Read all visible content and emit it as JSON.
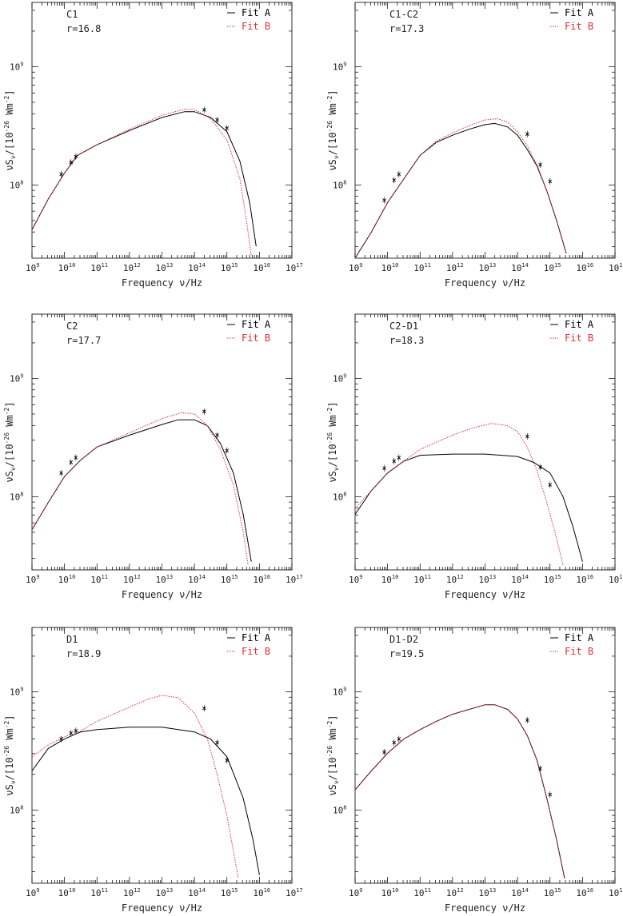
{
  "chart_data": [
    {
      "type": "line",
      "label": "C1",
      "r_label": "r=16.8",
      "xlabel": "Frequency ν/Hz",
      "ylabel": "νS_ν/[10^-26 Wm^-2]",
      "xscale": "log",
      "yscale": "log",
      "xlim": [
        1000000000.0,
        1e+17
      ],
      "ylim": [
        24000000.0,
        3500000000.0
      ],
      "legend": {
        "position": "top-right",
        "entries": [
          "Fit A",
          "Fit B"
        ]
      },
      "series": [
        {
          "name": "Fit A",
          "color": "#000000",
          "style": "solid",
          "points": [
            [
              9.0,
              7.62
            ],
            [
              9.5,
              7.88
            ],
            [
              10.0,
              8.1
            ],
            [
              10.4,
              8.25
            ],
            [
              11.0,
              8.34
            ],
            [
              12.0,
              8.46
            ],
            [
              13.0,
              8.57
            ],
            [
              13.7,
              8.62
            ],
            [
              14.0,
              8.62
            ],
            [
              14.5,
              8.57
            ],
            [
              15.0,
              8.45
            ],
            [
              15.4,
              8.2
            ],
            [
              15.7,
              7.85
            ],
            [
              15.9,
              7.48
            ]
          ]
        },
        {
          "name": "Fit B",
          "color": "#e03030",
          "style": "dotted",
          "points": [
            [
              9.0,
              7.62
            ],
            [
              9.5,
              7.88
            ],
            [
              10.0,
              8.1
            ],
            [
              10.4,
              8.25
            ],
            [
              11.0,
              8.34
            ],
            [
              12.0,
              8.47
            ],
            [
              13.0,
              8.59
            ],
            [
              13.7,
              8.64
            ],
            [
              14.0,
              8.64
            ],
            [
              14.5,
              8.56
            ],
            [
              15.0,
              8.38
            ],
            [
              15.4,
              8.05
            ],
            [
              15.6,
              7.7
            ],
            [
              15.75,
              7.4
            ]
          ]
        }
      ],
      "observations": [
        [
          9.9,
          8.09
        ],
        [
          10.2,
          8.19
        ],
        [
          10.35,
          8.24
        ],
        [
          14.3,
          8.635
        ],
        [
          14.7,
          8.55
        ],
        [
          15.0,
          8.48
        ]
      ]
    },
    {
      "type": "line",
      "label": "C1-C2",
      "r_label": "r=17.3",
      "xlabel": "Frequency ν/Hz",
      "ylabel": "νS_ν/[10^-26 Wm^-2]",
      "xscale": "log",
      "yscale": "log",
      "xlim": [
        1000000000.0,
        1e+17
      ],
      "ylim": [
        24000000.0,
        3500000000.0
      ],
      "legend": {
        "position": "top-right",
        "entries": [
          "Fit A",
          "Fit B"
        ]
      },
      "series": [
        {
          "name": "Fit A",
          "color": "#000000",
          "style": "solid",
          "points": [
            [
              9.0,
              7.38
            ],
            [
              9.5,
              7.6
            ],
            [
              10.0,
              7.85
            ],
            [
              10.5,
              8.05
            ],
            [
              11.0,
              8.25
            ],
            [
              11.5,
              8.36
            ],
            [
              12.0,
              8.42
            ],
            [
              12.5,
              8.47
            ],
            [
              13.0,
              8.51
            ],
            [
              13.3,
              8.52
            ],
            [
              13.7,
              8.49
            ],
            [
              14.0,
              8.42
            ],
            [
              14.3,
              8.3
            ],
            [
              14.6,
              8.16
            ],
            [
              14.9,
              7.95
            ],
            [
              15.2,
              7.7
            ],
            [
              15.5,
              7.42
            ]
          ]
        },
        {
          "name": "Fit B",
          "color": "#e03030",
          "style": "dotted",
          "points": [
            [
              9.0,
              7.38
            ],
            [
              9.5,
              7.6
            ],
            [
              10.0,
              7.85
            ],
            [
              10.5,
              8.05
            ],
            [
              11.0,
              8.25
            ],
            [
              11.5,
              8.37
            ],
            [
              12.0,
              8.44
            ],
            [
              12.5,
              8.5
            ],
            [
              13.0,
              8.55
            ],
            [
              13.4,
              8.56
            ],
            [
              13.7,
              8.53
            ],
            [
              14.0,
              8.45
            ],
            [
              14.3,
              8.33
            ],
            [
              14.6,
              8.17
            ],
            [
              14.9,
              7.95
            ],
            [
              15.2,
              7.7
            ],
            [
              15.5,
              7.42
            ]
          ]
        }
      ],
      "observations": [
        [
          9.9,
          7.87
        ],
        [
          10.2,
          8.04
        ],
        [
          10.35,
          8.09
        ],
        [
          14.3,
          8.43
        ],
        [
          14.7,
          8.17
        ],
        [
          15.0,
          8.03
        ]
      ]
    },
    {
      "type": "line",
      "label": "C2",
      "r_label": "r=17.7",
      "xlabel": "Frequency ν/Hz",
      "ylabel": "νS_ν/[10^-26 Wm^-2]",
      "xscale": "log",
      "yscale": "log",
      "xlim": [
        1000000000.0,
        1e+17
      ],
      "ylim": [
        24000000.0,
        3500000000.0
      ],
      "legend": {
        "position": "top-right",
        "entries": [
          "Fit A",
          "Fit B"
        ]
      },
      "series": [
        {
          "name": "Fit A",
          "color": "#000000",
          "style": "solid",
          "points": [
            [
              9.0,
              7.72
            ],
            [
              9.5,
              7.95
            ],
            [
              10.0,
              8.17
            ],
            [
              10.5,
              8.31
            ],
            [
              11.0,
              8.42
            ],
            [
              12.0,
              8.52
            ],
            [
              13.0,
              8.61
            ],
            [
              13.5,
              8.65
            ],
            [
              14.0,
              8.65
            ],
            [
              14.4,
              8.6
            ],
            [
              14.8,
              8.45
            ],
            [
              15.2,
              8.2
            ],
            [
              15.5,
              7.85
            ],
            [
              15.75,
              7.45
            ]
          ]
        },
        {
          "name": "Fit B",
          "color": "#e03030",
          "style": "dotted",
          "points": [
            [
              9.0,
              7.72
            ],
            [
              9.5,
              7.95
            ],
            [
              10.0,
              8.17
            ],
            [
              10.5,
              8.31
            ],
            [
              11.0,
              8.42
            ],
            [
              12.0,
              8.54
            ],
            [
              13.0,
              8.66
            ],
            [
              13.6,
              8.71
            ],
            [
              14.0,
              8.7
            ],
            [
              14.4,
              8.6
            ],
            [
              14.8,
              8.4
            ],
            [
              15.2,
              8.1
            ],
            [
              15.5,
              7.7
            ],
            [
              15.65,
              7.42
            ]
          ]
        }
      ],
      "observations": [
        [
          9.9,
          8.2
        ],
        [
          10.2,
          8.29
        ],
        [
          10.35,
          8.33
        ],
        [
          14.3,
          8.72
        ],
        [
          14.7,
          8.52
        ],
        [
          15.0,
          8.39
        ]
      ]
    },
    {
      "type": "line",
      "label": "C2-D1",
      "r_label": "r=18.3",
      "xlabel": "Frequency ν/Hz",
      "ylabel": "νS_ν/[10^-26 Wm^-2]",
      "xscale": "log",
      "yscale": "log",
      "xlim": [
        1000000000.0,
        1e+17
      ],
      "ylim": [
        24000000.0,
        3500000000.0
      ],
      "legend": {
        "position": "top-right",
        "entries": [
          "Fit A",
          "Fit B"
        ]
      },
      "series": [
        {
          "name": "Fit A",
          "color": "#000000",
          "style": "solid",
          "points": [
            [
              9.0,
              7.85
            ],
            [
              9.5,
              8.05
            ],
            [
              10.0,
              8.2
            ],
            [
              10.5,
              8.3
            ],
            [
              11.0,
              8.35
            ],
            [
              12.0,
              8.36
            ],
            [
              13.0,
              8.36
            ],
            [
              14.0,
              8.34
            ],
            [
              14.5,
              8.29
            ],
            [
              15.0,
              8.2
            ],
            [
              15.4,
              8.0
            ],
            [
              15.7,
              7.75
            ],
            [
              16.0,
              7.45
            ]
          ]
        },
        {
          "name": "Fit B",
          "color": "#e03030",
          "style": "dotted",
          "points": [
            [
              9.0,
              7.9
            ],
            [
              9.5,
              8.05
            ],
            [
              10.0,
              8.2
            ],
            [
              10.5,
              8.3
            ],
            [
              11.0,
              8.4
            ],
            [
              12.0,
              8.52
            ],
            [
              12.6,
              8.58
            ],
            [
              13.2,
              8.62
            ],
            [
              13.7,
              8.6
            ],
            [
              14.0,
              8.55
            ],
            [
              14.3,
              8.42
            ],
            [
              14.6,
              8.22
            ],
            [
              14.9,
              7.95
            ],
            [
              15.2,
              7.65
            ],
            [
              15.4,
              7.42
            ]
          ]
        }
      ],
      "observations": [
        [
          9.9,
          8.24
        ],
        [
          10.2,
          8.3
        ],
        [
          10.35,
          8.33
        ],
        [
          14.3,
          8.51
        ],
        [
          14.7,
          8.25
        ],
        [
          15.0,
          8.1
        ]
      ]
    },
    {
      "type": "line",
      "label": "D1",
      "r_label": "r=18.9",
      "xlabel": "Frequency ν/Hz",
      "ylabel": "νS_ν/[10^-26 Wm^-2]",
      "xscale": "log",
      "yscale": "log",
      "xlim": [
        1000000000.0,
        1e+17
      ],
      "ylim": [
        24000000.0,
        3500000000.0
      ],
      "legend": {
        "position": "top-right",
        "entries": [
          "Fit A",
          "Fit B"
        ]
      },
      "series": [
        {
          "name": "Fit A",
          "color": "#000000",
          "style": "solid",
          "points": [
            [
              9.0,
              8.33
            ],
            [
              9.5,
              8.52
            ],
            [
              10.0,
              8.6
            ],
            [
              10.5,
              8.66
            ],
            [
              11.0,
              8.68
            ],
            [
              12.0,
              8.7
            ],
            [
              13.0,
              8.7
            ],
            [
              14.0,
              8.66
            ],
            [
              14.5,
              8.6
            ],
            [
              15.0,
              8.45
            ],
            [
              15.5,
              8.1
            ],
            [
              15.8,
              7.75
            ],
            [
              16.0,
              7.45
            ]
          ]
        },
        {
          "name": "Fit B",
          "color": "#e03030",
          "style": "dotted",
          "points": [
            [
              9.0,
              8.45
            ],
            [
              9.5,
              8.55
            ],
            [
              10.0,
              8.62
            ],
            [
              10.5,
              8.67
            ],
            [
              11.0,
              8.75
            ],
            [
              12.0,
              8.87
            ],
            [
              12.6,
              8.94
            ],
            [
              13.0,
              8.97
            ],
            [
              13.5,
              8.95
            ],
            [
              14.0,
              8.82
            ],
            [
              14.4,
              8.6
            ],
            [
              14.7,
              8.3
            ],
            [
              15.0,
              7.95
            ],
            [
              15.2,
              7.65
            ],
            [
              15.35,
              7.42
            ]
          ]
        }
      ],
      "observations": [
        [
          9.9,
          8.6
        ],
        [
          10.2,
          8.65
        ],
        [
          10.35,
          8.67
        ],
        [
          14.3,
          8.86
        ],
        [
          14.7,
          8.57
        ],
        [
          15.0,
          8.42
        ]
      ]
    },
    {
      "type": "line",
      "label": "D1-D2",
      "r_label": "r=19.5",
      "xlabel": "Frequency ν/Hz",
      "ylabel": "νS_ν/[10^-26 Wm^-2]",
      "xscale": "log",
      "yscale": "log",
      "xlim": [
        1000000000.0,
        1e+17
      ],
      "ylim": [
        24000000.0,
        3500000000.0
      ],
      "legend": {
        "position": "top-right",
        "entries": [
          "Fit A",
          "Fit B"
        ]
      },
      "series": [
        {
          "name": "Fit A",
          "color": "#000000",
          "style": "solid",
          "points": [
            [
              9.0,
              8.17
            ],
            [
              9.5,
              8.33
            ],
            [
              10.0,
              8.48
            ],
            [
              10.5,
              8.6
            ],
            [
              11.0,
              8.68
            ],
            [
              11.5,
              8.75
            ],
            [
              12.0,
              8.81
            ],
            [
              12.5,
              8.85
            ],
            [
              13.0,
              8.89
            ],
            [
              13.3,
              8.89
            ],
            [
              13.7,
              8.85
            ],
            [
              14.0,
              8.77
            ],
            [
              14.3,
              8.63
            ],
            [
              14.6,
              8.42
            ],
            [
              14.9,
              8.1
            ],
            [
              15.2,
              7.75
            ],
            [
              15.45,
              7.42
            ]
          ]
        },
        {
          "name": "Fit B",
          "color": "#e03030",
          "style": "dotted",
          "points": [
            [
              9.0,
              8.17
            ],
            [
              9.5,
              8.33
            ],
            [
              10.0,
              8.48
            ],
            [
              10.5,
              8.6
            ],
            [
              11.0,
              8.68
            ],
            [
              11.5,
              8.75
            ],
            [
              12.0,
              8.81
            ],
            [
              12.5,
              8.85
            ],
            [
              13.0,
              8.89
            ],
            [
              13.3,
              8.89
            ],
            [
              13.7,
              8.85
            ],
            [
              14.0,
              8.77
            ],
            [
              14.3,
              8.63
            ],
            [
              14.6,
              8.42
            ],
            [
              14.9,
              8.1
            ],
            [
              15.2,
              7.75
            ],
            [
              15.45,
              7.42
            ]
          ]
        }
      ],
      "observations": [
        [
          9.9,
          8.49
        ],
        [
          10.2,
          8.57
        ],
        [
          10.35,
          8.6
        ],
        [
          14.3,
          8.76
        ],
        [
          14.7,
          8.35
        ],
        [
          15.0,
          8.13
        ]
      ]
    }
  ]
}
